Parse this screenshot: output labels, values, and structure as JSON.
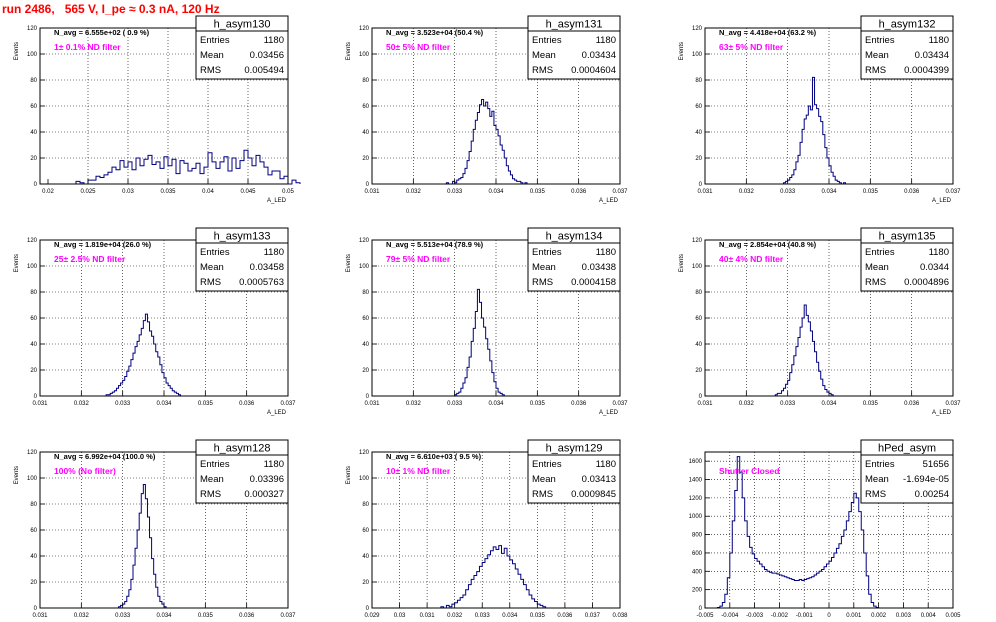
{
  "canvas_title": "run 2486,   565 V, I_pe ≈ 0.3 nA, 120 Hz",
  "colors": {
    "histogram": "#000080",
    "annotation": "#ff00ff",
    "title": "#ff0000",
    "grid": "#000000"
  },
  "chart_data": [
    {
      "type": "histogram",
      "name": "h_asym130",
      "navg": "N_avg = 6.555e+02 ( 0.9 %)",
      "annotation": "1± 0.1% ND filter",
      "stats": [
        [
          "Entries",
          "1180"
        ],
        [
          "Mean",
          "0.03456"
        ],
        [
          "RMS",
          "0.005494"
        ]
      ],
      "ylabel": "Events",
      "xlabel": "A_LED",
      "grid": true,
      "xlim": [
        0.019,
        0.05
      ],
      "ylim": [
        0,
        120
      ],
      "xticks": [
        0.02,
        0.025,
        0.03,
        0.035,
        0.04,
        0.045,
        0.05
      ],
      "yticks": [
        0,
        20,
        40,
        60,
        80,
        100,
        120
      ],
      "xtick_labels": [
        "0.02",
        "0.025",
        "0.03",
        "0.035",
        "0.04",
        "0.045",
        "0.05"
      ],
      "ytick_labels": [
        "0",
        "20",
        "40",
        "60",
        "80",
        "100",
        "120"
      ],
      "bins": {
        "x0": 0.0235,
        "dx": 0.0005,
        "y": [
          2,
          1,
          0,
          3,
          3,
          6,
          5,
          7,
          9,
          13,
          11,
          18,
          13,
          17,
          11,
          20,
          14,
          19,
          22,
          15,
          17,
          12,
          21,
          14,
          19,
          8,
          18,
          16,
          10,
          12,
          16,
          8,
          13,
          24,
          17,
          12,
          17,
          21,
          10,
          20,
          12,
          18,
          26,
          20,
          14,
          22,
          17,
          13,
          7,
          10,
          10,
          4,
          6,
          0,
          3,
          1
        ]
      }
    },
    {
      "type": "histogram",
      "name": "h_asym131",
      "navg": "N_avg = 3.523e+04 (50.4 %)",
      "annotation": "50± 5% ND filter",
      "stats": [
        [
          "Entries",
          "1180"
        ],
        [
          "Mean",
          "0.03434"
        ],
        [
          "RMS",
          "0.0004604"
        ]
      ],
      "ylabel": "Events",
      "xlabel": "A_LED",
      "grid": true,
      "xlim": [
        0.031,
        0.037
      ],
      "ylim": [
        0,
        120
      ],
      "xticks": [
        0.031,
        0.032,
        0.033,
        0.034,
        0.035,
        0.036,
        0.037
      ],
      "yticks": [
        0,
        20,
        40,
        60,
        80,
        100,
        120
      ],
      "xtick_labels": [
        "0.031",
        "0.032",
        "0.033",
        "0.034",
        "0.035",
        "0.036",
        "0.037"
      ],
      "ytick_labels": [
        "0",
        "20",
        "40",
        "60",
        "80",
        "100",
        "120"
      ],
      "bins": {
        "x0": 0.0328,
        "dx": 5e-05,
        "y": [
          1,
          0,
          0,
          2,
          1,
          3,
          4,
          5,
          8,
          12,
          18,
          25,
          33,
          42,
          49,
          55,
          61,
          65,
          60,
          63,
          58,
          52,
          56,
          45,
          42,
          37,
          30,
          26,
          20,
          14,
          10,
          7,
          4,
          3,
          2,
          2,
          1,
          0,
          1
        ]
      }
    },
    {
      "type": "histogram",
      "name": "h_asym132",
      "navg": "N_avg = 4.418e+04 (63.2 %)",
      "annotation": "63± 5% ND filter",
      "stats": [
        [
          "Entries",
          "1180"
        ],
        [
          "Mean",
          "0.03434"
        ],
        [
          "RMS",
          "0.0004399"
        ]
      ],
      "ylabel": "Events",
      "xlabel": "A_LED",
      "grid": true,
      "xlim": [
        0.031,
        0.037
      ],
      "ylim": [
        0,
        120
      ],
      "xticks": [
        0.031,
        0.032,
        0.033,
        0.034,
        0.035,
        0.036,
        0.037
      ],
      "yticks": [
        0,
        20,
        40,
        60,
        80,
        100,
        120
      ],
      "xtick_labels": [
        "0.031",
        "0.032",
        "0.033",
        "0.034",
        "0.035",
        "0.036",
        "0.037"
      ],
      "ytick_labels": [
        "0",
        "20",
        "40",
        "60",
        "80",
        "100",
        "120"
      ],
      "bins": {
        "x0": 0.0329,
        "dx": 5e-05,
        "y": [
          1,
          2,
          3,
          5,
          7,
          11,
          17,
          22,
          32,
          42,
          50,
          53,
          60,
          57,
          82,
          61,
          58,
          52,
          48,
          38,
          28,
          20,
          14,
          9,
          6,
          3,
          2,
          1,
          0,
          1
        ]
      }
    },
    {
      "type": "histogram",
      "name": "h_asym133",
      "navg": "N_avg = 1.819e+04 (26.0 %)",
      "annotation": "25± 2.5% ND filter",
      "stats": [
        [
          "Entries",
          "1180"
        ],
        [
          "Mean",
          "0.03458"
        ],
        [
          "RMS",
          "0.0005763"
        ]
      ],
      "ylabel": "Events",
      "xlabel": "A_LED",
      "grid": true,
      "xlim": [
        0.031,
        0.037
      ],
      "ylim": [
        0,
        120
      ],
      "xticks": [
        0.031,
        0.032,
        0.033,
        0.034,
        0.035,
        0.036,
        0.037
      ],
      "yticks": [
        0,
        20,
        40,
        60,
        80,
        100,
        120
      ],
      "xtick_labels": [
        "0.031",
        "0.032",
        "0.033",
        "0.034",
        "0.035",
        "0.036",
        "0.037"
      ],
      "ytick_labels": [
        "0",
        "20",
        "40",
        "60",
        "80",
        "100",
        "120"
      ],
      "bins": {
        "x0": 0.0326,
        "dx": 5e-05,
        "y": [
          1,
          1,
          2,
          3,
          4,
          6,
          8,
          10,
          12,
          15,
          19,
          23,
          28,
          33,
          38,
          42,
          47,
          52,
          58,
          63,
          57,
          50,
          46,
          40,
          34,
          30,
          24,
          18,
          14,
          10,
          8,
          6,
          4,
          3,
          2,
          1
        ]
      }
    },
    {
      "type": "histogram",
      "name": "h_asym134",
      "navg": "N_avg = 5.513e+04 (78.9 %)",
      "annotation": "79± 5% ND filter",
      "stats": [
        [
          "Entries",
          "1180"
        ],
        [
          "Mean",
          "0.03438"
        ],
        [
          "RMS",
          "0.0004158"
        ]
      ],
      "ylabel": "Events",
      "xlabel": "A_LED",
      "grid": true,
      "xlim": [
        0.031,
        0.037
      ],
      "ylim": [
        0,
        120
      ],
      "xticks": [
        0.031,
        0.032,
        0.033,
        0.034,
        0.035,
        0.036,
        0.037
      ],
      "yticks": [
        0,
        20,
        40,
        60,
        80,
        100,
        120
      ],
      "xtick_labels": [
        "0.031",
        "0.032",
        "0.033",
        "0.034",
        "0.035",
        "0.036",
        "0.037"
      ],
      "ytick_labels": [
        "0",
        "20",
        "40",
        "60",
        "80",
        "100",
        "120"
      ],
      "bins": {
        "x0": 0.033,
        "dx": 5e-05,
        "y": [
          1,
          2,
          3,
          6,
          10,
          14,
          22,
          30,
          42,
          52,
          65,
          82,
          72,
          60,
          53,
          44,
          36,
          27,
          18,
          11,
          6,
          3,
          2,
          1
        ]
      }
    },
    {
      "type": "histogram",
      "name": "h_asym135",
      "navg": "N_avg = 2.854e+04 (40.8 %)",
      "annotation": "40± 4% ND filter",
      "stats": [
        [
          "Entries",
          "1180"
        ],
        [
          "Mean",
          "0.0344"
        ],
        [
          "RMS",
          "0.0004896"
        ]
      ],
      "ylabel": "Events",
      "xlabel": "A_LED",
      "grid": true,
      "xlim": [
        0.031,
        0.037
      ],
      "ylim": [
        0,
        120
      ],
      "xticks": [
        0.031,
        0.032,
        0.033,
        0.034,
        0.035,
        0.036,
        0.037
      ],
      "yticks": [
        0,
        20,
        40,
        60,
        80,
        100,
        120
      ],
      "xtick_labels": [
        "0.031",
        "0.032",
        "0.033",
        "0.034",
        "0.035",
        "0.036",
        "0.037"
      ],
      "ytick_labels": [
        "0",
        "20",
        "40",
        "60",
        "80",
        "100",
        "120"
      ],
      "bins": {
        "x0": 0.0327,
        "dx": 5e-05,
        "y": [
          1,
          2,
          2,
          4,
          6,
          9,
          12,
          18,
          24,
          31,
          38,
          45,
          53,
          60,
          70,
          62,
          57,
          50,
          42,
          34,
          26,
          19,
          13,
          8,
          5,
          3,
          2,
          1
        ]
      }
    },
    {
      "type": "histogram",
      "name": "h_asym128",
      "navg": "N_avg = 6.992e+04 (100.0 %)",
      "annotation": "100% (No filter)",
      "stats": [
        [
          "Entries",
          "1180"
        ],
        [
          "Mean",
          "0.03396"
        ],
        [
          "RMS",
          "0.000327"
        ]
      ],
      "ylabel": "Events",
      "xlabel": "A_LED",
      "grid": true,
      "xlim": [
        0.031,
        0.037
      ],
      "ylim": [
        0,
        120
      ],
      "xticks": [
        0.031,
        0.032,
        0.033,
        0.034,
        0.035,
        0.036,
        0.037
      ],
      "yticks": [
        0,
        20,
        40,
        60,
        80,
        100,
        120
      ],
      "xtick_labels": [
        "0.031",
        "0.032",
        "0.033",
        "0.034",
        "0.035",
        "0.036",
        "0.037"
      ],
      "ytick_labels": [
        "0",
        "20",
        "40",
        "60",
        "80",
        "100",
        "120"
      ],
      "bins": {
        "x0": 0.0329,
        "dx": 5e-05,
        "y": [
          1,
          2,
          3,
          5,
          9,
          14,
          22,
          33,
          46,
          60,
          73,
          88,
          95,
          84,
          70,
          54,
          38,
          26,
          16,
          9,
          5,
          3,
          1
        ]
      }
    },
    {
      "type": "histogram",
      "name": "h_asym129",
      "navg": "N_avg = 6.610e+03 ( 9.5 %)",
      "annotation": "10± 1% ND filter",
      "stats": [
        [
          "Entries",
          "1180"
        ],
        [
          "Mean",
          "0.03413"
        ],
        [
          "RMS",
          "0.0009845"
        ]
      ],
      "ylabel": "Events",
      "xlabel": "A_LED",
      "grid": true,
      "xlim": [
        0.029,
        0.038
      ],
      "ylim": [
        0,
        120
      ],
      "xticks": [
        0.029,
        0.03,
        0.031,
        0.032,
        0.033,
        0.034,
        0.035,
        0.036,
        0.037,
        0.038
      ],
      "yticks": [
        0,
        20,
        40,
        60,
        80,
        100,
        120
      ],
      "xtick_labels": [
        "0.029",
        "0.03",
        "0.031",
        "0.032",
        "0.033",
        "0.034",
        "0.035",
        "0.036",
        "0.037",
        "0.038"
      ],
      "ytick_labels": [
        "0",
        "20",
        "40",
        "60",
        "80",
        "100",
        "120"
      ],
      "bins": {
        "x0": 0.0315,
        "dx": 0.0001,
        "y": [
          1,
          0,
          2,
          1,
          3,
          4,
          6,
          8,
          10,
          14,
          18,
          22,
          25,
          28,
          32,
          35,
          38,
          41,
          44,
          47,
          45,
          48,
          42,
          46,
          40,
          37,
          34,
          30,
          26,
          22,
          18,
          14,
          10,
          7,
          5,
          3,
          2,
          1
        ]
      }
    },
    {
      "type": "histogram",
      "name": "hPed_asym",
      "navg": "",
      "annotation": "Shutter Closed",
      "stats": [
        [
          "Entries",
          "51656"
        ],
        [
          "Mean",
          "-1.694e-05"
        ],
        [
          "RMS",
          "0.00254"
        ]
      ],
      "ylabel": "",
      "xlabel": "",
      "grid": true,
      "xlim": [
        -0.005,
        0.005
      ],
      "ylim": [
        0,
        1700
      ],
      "xticks": [
        -0.005,
        -0.004,
        -0.003,
        -0.002,
        -0.001,
        0,
        0.001,
        0.002,
        0.003,
        0.004,
        0.005
      ],
      "yticks": [
        0,
        200,
        400,
        600,
        800,
        1000,
        1200,
        1400,
        1600
      ],
      "xtick_labels": [
        "-0.005",
        "-0.004",
        "-0.003",
        "-0.002",
        "-0.001",
        "0",
        "0.001",
        "0.002",
        "0.003",
        "0.004",
        "0.005"
      ],
      "ytick_labels": [
        "0",
        "200",
        "400",
        "600",
        "800",
        "1000",
        "1200",
        "1400",
        "1600"
      ],
      "bins": {
        "x0": -0.0045,
        "dx": 0.0001,
        "y": [
          5,
          20,
          60,
          150,
          330,
          600,
          950,
          1280,
          1650,
          1480,
          1200,
          950,
          780,
          660,
          590,
          540,
          510,
          480,
          450,
          420,
          400,
          390,
          380,
          380,
          370,
          360,
          350,
          340,
          330,
          320,
          310,
          300,
          300,
          310,
          300,
          310,
          320,
          330,
          340,
          360,
          380,
          400,
          420,
          450,
          480,
          510,
          550,
          600,
          650,
          700,
          780,
          850,
          950,
          1050,
          1150,
          1250,
          1200,
          1050,
          850,
          600,
          350,
          150,
          60,
          20,
          5
        ]
      }
    }
  ]
}
